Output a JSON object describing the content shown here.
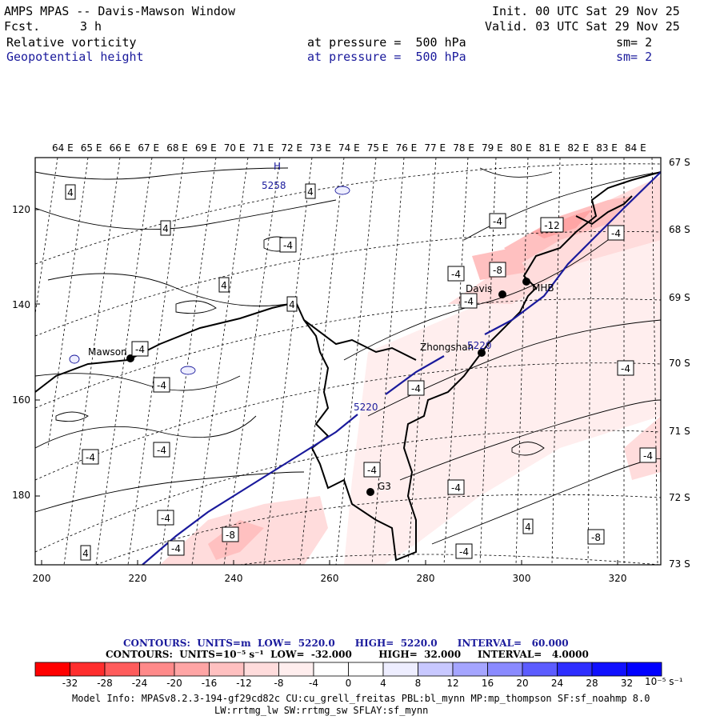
{
  "header": {
    "title": "AMPS MPAS -- Davis-Mawson Window",
    "fcst_label": "Fcst.",
    "fcst_value": "3 h",
    "init": "Init. 00 UTC Sat 29 Nov 25",
    "valid": "Valid. 03 UTC Sat 29 Nov 25",
    "field1": {
      "name": "Relative vorticity",
      "level": "at pressure =  500 hPa",
      "sm": "sm= 2"
    },
    "field2": {
      "name": "Geopotential height",
      "level": "at pressure =  500 hPa",
      "sm": "sm= 2"
    }
  },
  "map": {
    "top_lon_labels": [
      "64 E",
      "65 E",
      "66 E",
      "67 E",
      "68 E",
      "69 E",
      "70 E",
      "71 E",
      "72 E",
      "73 E",
      "74 E",
      "75 E",
      "76 E",
      "77 E",
      "78 E",
      "79 E",
      "80 E",
      "81 E",
      "82 E",
      "83 E",
      "84 E"
    ],
    "right_lat_labels": [
      "67 S",
      "68 S",
      "69 S",
      "70 S",
      "71 S",
      "72 S",
      "73 S"
    ],
    "x_ticks": [
      "200",
      "220",
      "240",
      "260",
      "280",
      "300",
      "320"
    ],
    "y_ticks": [
      "120",
      "140",
      "160",
      "180"
    ],
    "stations": [
      {
        "name": "Mawson"
      },
      {
        "name": "Davis"
      },
      {
        "name": "MHB"
      },
      {
        "name": "Zhongshan"
      },
      {
        "name": "G3"
      }
    ],
    "height_labels": [
      "5258",
      "5220",
      "5220"
    ],
    "high_marker": "H",
    "vort_labels": [
      "-4",
      "-4",
      "-12",
      "-4",
      "-8",
      "-4",
      "-4",
      "-4",
      "-4",
      "-4",
      "-4",
      "-8",
      "4",
      "4",
      "4",
      "4",
      "-4",
      "-4",
      "-4",
      "-4",
      "-4",
      "-8",
      "-4",
      "4",
      "-4",
      "4",
      "4",
      "-4"
    ]
  },
  "colorbar": {
    "colors": [
      "#ff0000",
      "#ff2e2e",
      "#ff5c5c",
      "#ff8a8a",
      "#ffa5a5",
      "#ffc0c0",
      "#ffdcdc",
      "#ffeeee",
      "#ffffff",
      "#ffffff",
      "#eeeeff",
      "#c8c8ff",
      "#a5a5ff",
      "#8a8aff",
      "#5c5cff",
      "#2e2eff",
      "#1010ff",
      "#0000ff"
    ],
    "labels": [
      "-32",
      "-28",
      "-24",
      "-20",
      "-16",
      "-12",
      "-8",
      "-4",
      "0",
      "4",
      "8",
      "12",
      "16",
      "20",
      "24",
      "28",
      "32"
    ],
    "units": "10⁻⁵ s⁻¹"
  },
  "contours_line1": "CONTOURS:  UNITS=m  LOW=  5220.0      HIGH=  5220.0      INTERVAL=   60.000",
  "contours_line2": "CONTOURS:  UNITS=10⁻⁵ s⁻¹  LOW=  -32.000        HIGH=  32.000     INTERVAL=   4.0000",
  "model_info_1": "Model Info: MPASv8.2.3-194-gf29cd82c CU:cu_grell_freitas PBL:bl_mynn MP:mp_thompson SF:sf_noahmp 8.0",
  "model_info_2": "LW:rrtmg_lw SW:rrtmg_sw SFLAY:sf_mynn"
}
